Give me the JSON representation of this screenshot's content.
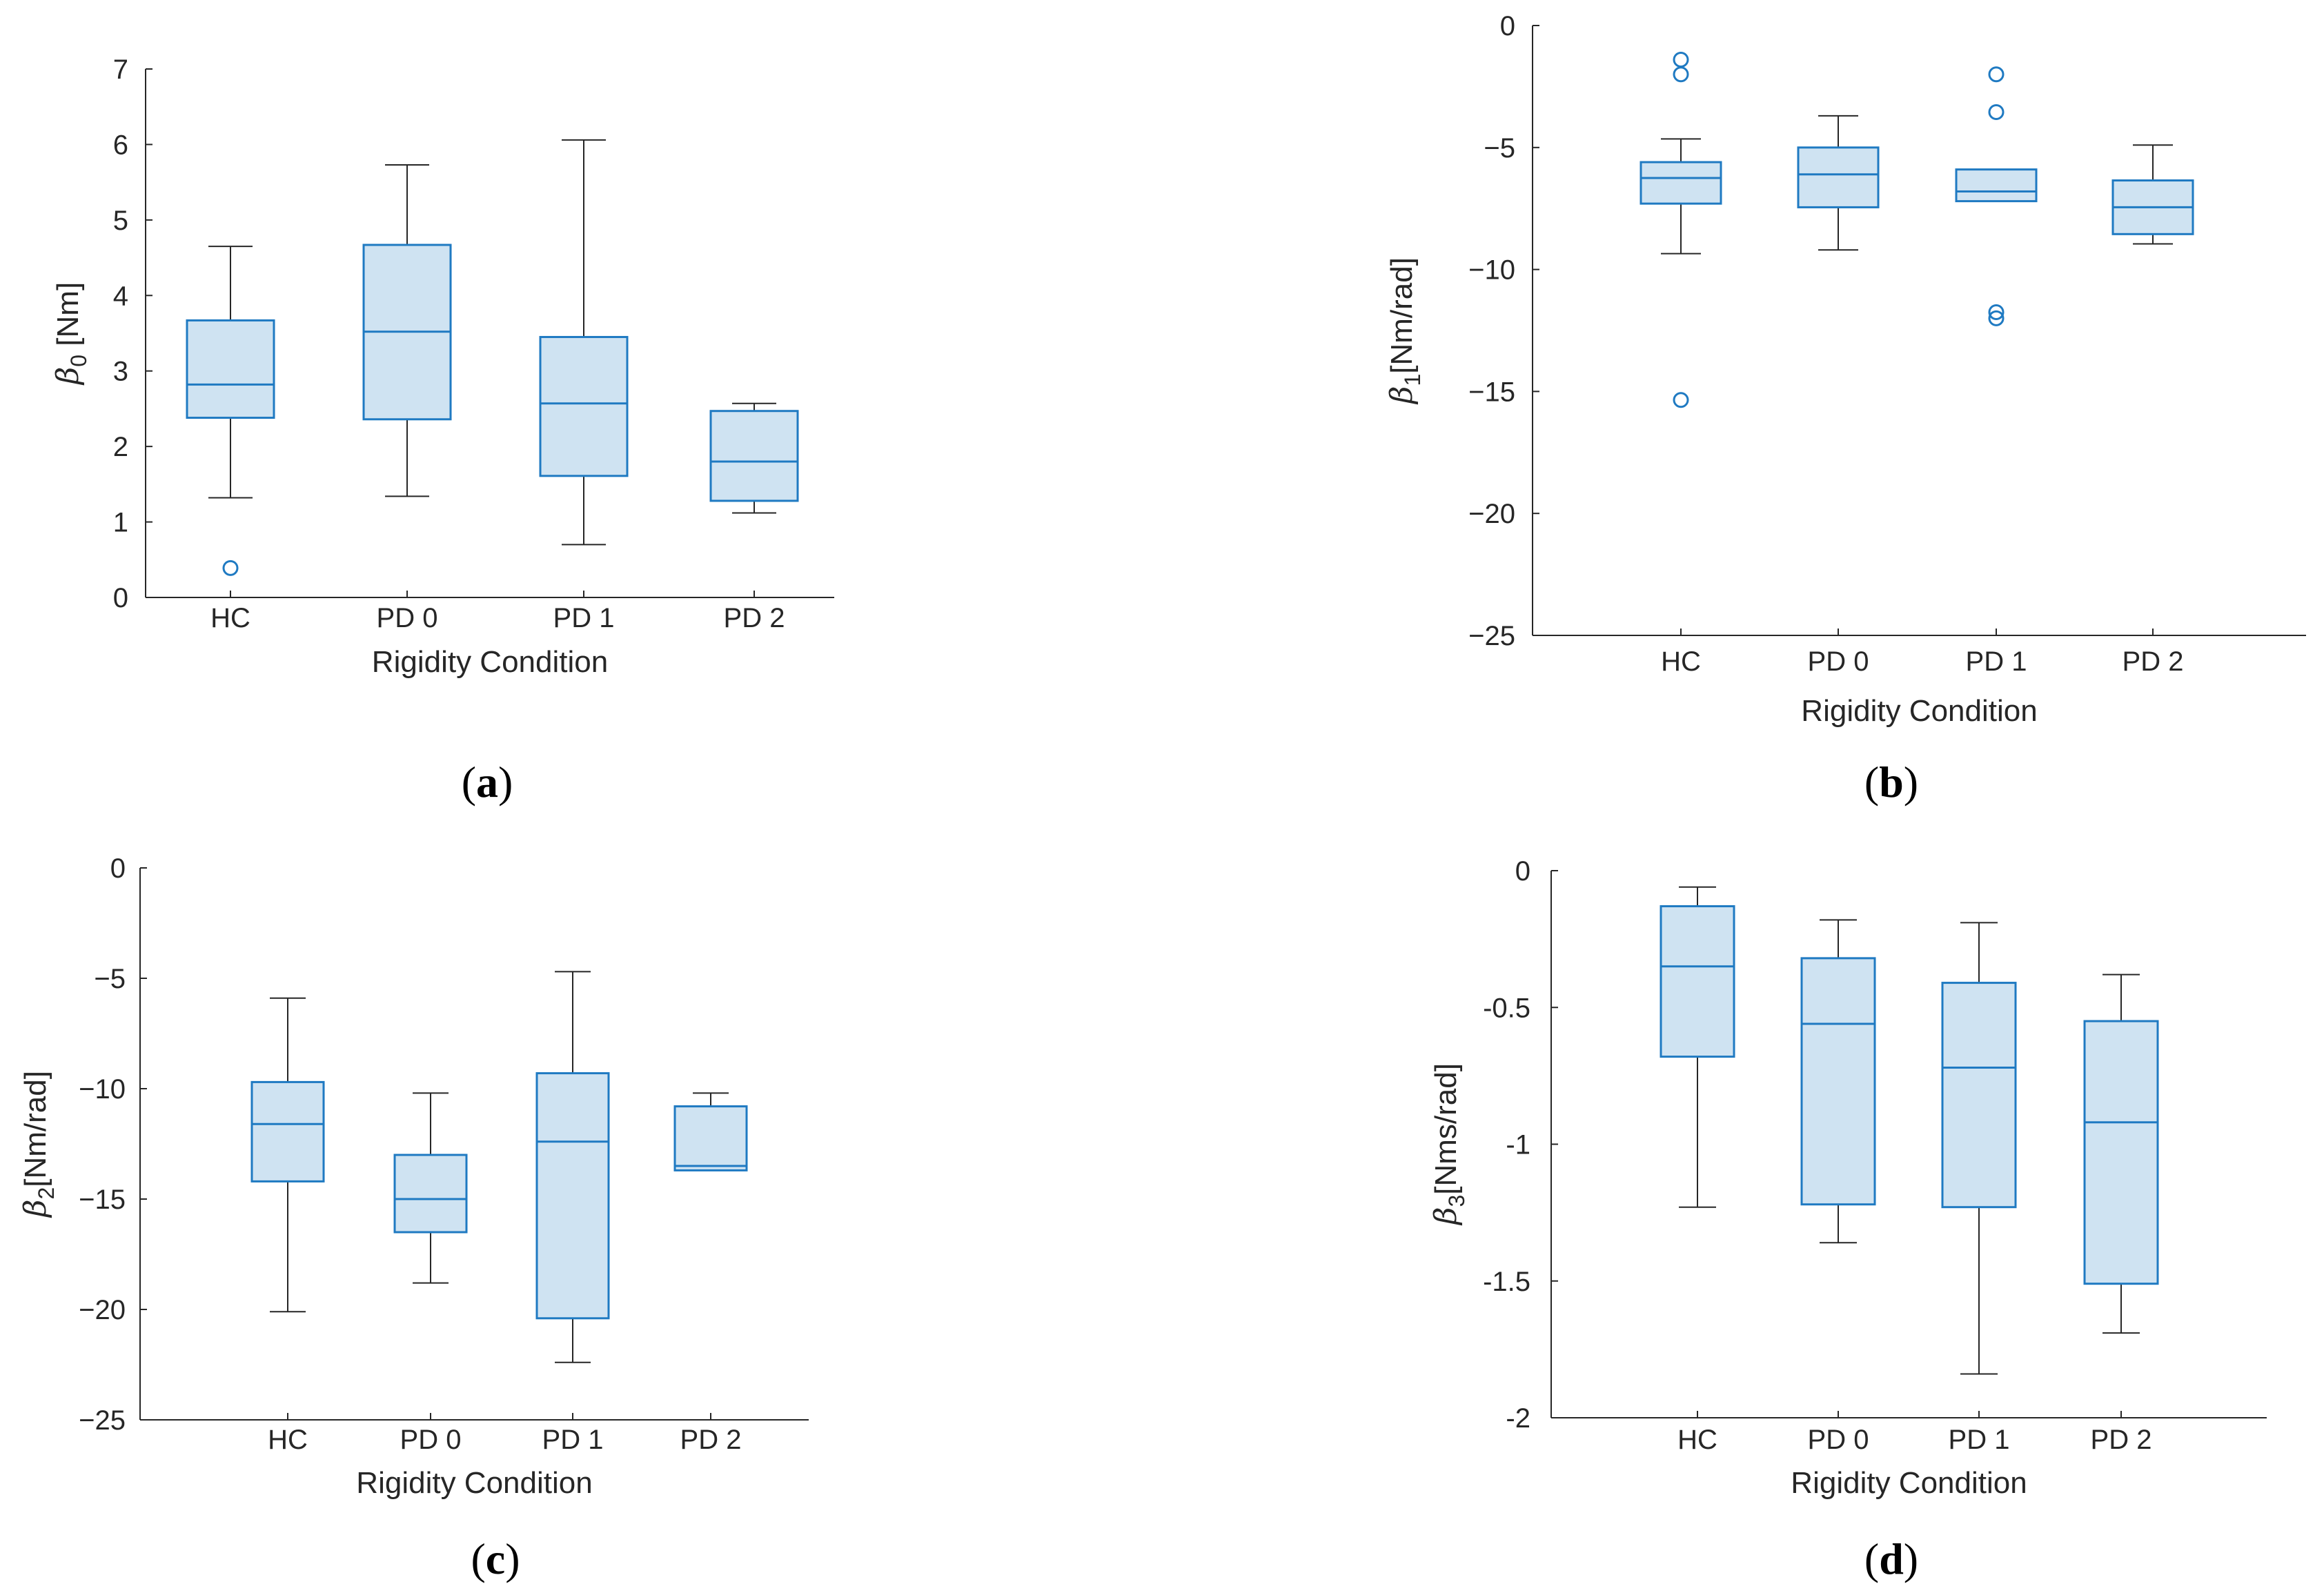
{
  "colors": {
    "box_edge": "#1f7ac2",
    "box_fill": "#cfe3f2",
    "whisker": "#262626",
    "axis": "#262626"
  },
  "chart_data": [
    {
      "type": "box",
      "panel": "a",
      "categories": [
        "HC",
        "PD 0",
        "PD 1",
        "PD 2"
      ],
      "xlabel": "Rigidity Condition",
      "ylabel_symbol": "β",
      "ylabel_subscript": "0",
      "ylabel_unit": " [Nm]",
      "ylim": [
        0,
        7
      ],
      "yticks": [
        0,
        1,
        2,
        3,
        4,
        5,
        6,
        7
      ],
      "ytick_labels": [
        "0",
        "1",
        "2",
        "3",
        "4",
        "5",
        "6",
        "7"
      ],
      "boxes": [
        {
          "name": "HC",
          "whisker_low": 1.32,
          "q1": 2.38,
          "median": 2.82,
          "q3": 3.67,
          "whisker_high": 4.65,
          "outliers": [
            0.39
          ]
        },
        {
          "name": "PD 0",
          "whisker_low": 1.34,
          "q1": 2.36,
          "median": 3.52,
          "q3": 4.67,
          "whisker_high": 5.73,
          "outliers": []
        },
        {
          "name": "PD 1",
          "whisker_low": 0.7,
          "q1": 1.61,
          "median": 2.57,
          "q3": 3.45,
          "whisker_high": 6.06,
          "outliers": []
        },
        {
          "name": "PD 2",
          "whisker_low": 1.12,
          "q1": 1.28,
          "median": 1.8,
          "q3": 2.47,
          "whisker_high": 2.57,
          "outliers": []
        }
      ]
    },
    {
      "type": "box",
      "panel": "b",
      "categories": [
        "HC",
        "PD 0",
        "PD 1",
        "PD 2"
      ],
      "xlabel": "Rigidity Condition",
      "ylabel_symbol": "β",
      "ylabel_subscript": "1",
      "ylabel_unit": "[Nm/rad]",
      "ylim": [
        -25,
        0
      ],
      "yticks": [
        -25,
        -20,
        -15,
        -10,
        -5,
        0
      ],
      "ytick_labels": [
        "−25",
        "−20",
        "−15",
        "−10",
        "−5",
        "0"
      ],
      "boxes": [
        {
          "name": "HC",
          "whisker_low": -9.35,
          "q1": -7.3,
          "median": -6.25,
          "q3": -5.6,
          "whisker_high": -4.65,
          "outliers": [
            -1.4,
            -2.0,
            -15.35
          ]
        },
        {
          "name": "PD 0",
          "whisker_low": -9.2,
          "q1": -7.45,
          "median": -6.1,
          "q3": -5.0,
          "whisker_high": -3.7,
          "outliers": []
        },
        {
          "name": "PD 1",
          "whisker_low": -7.2,
          "q1": -7.2,
          "median": -6.8,
          "q3": -5.9,
          "whisker_high": -5.9,
          "outliers": [
            -2.0,
            -3.55,
            -11.75,
            -12.0
          ]
        },
        {
          "name": "PD 2",
          "whisker_low": -8.95,
          "q1": -8.55,
          "median": -7.45,
          "q3": -6.35,
          "whisker_high": -4.9,
          "outliers": []
        }
      ]
    },
    {
      "type": "box",
      "panel": "c",
      "categories": [
        "HC",
        "PD 0",
        "PD 1",
        "PD 2"
      ],
      "xlabel": "Rigidity Condition",
      "ylabel_symbol": "β",
      "ylabel_subscript": "2",
      "ylabel_unit": "[Nm/rad]",
      "ylim": [
        -25,
        0
      ],
      "yticks": [
        -25,
        -20,
        -15,
        -10,
        -5,
        0
      ],
      "ytick_labels": [
        "−25",
        "−20",
        "−15",
        "−10",
        "−5",
        "0"
      ],
      "boxes": [
        {
          "name": "HC",
          "whisker_low": -20.1,
          "q1": -14.2,
          "median": -11.6,
          "q3": -9.7,
          "whisker_high": -5.9,
          "outliers": []
        },
        {
          "name": "PD 0",
          "whisker_low": -18.8,
          "q1": -16.5,
          "median": -15.0,
          "q3": -13.0,
          "whisker_high": -10.2,
          "outliers": []
        },
        {
          "name": "PD 1",
          "whisker_low": -22.4,
          "q1": -20.4,
          "median": -12.4,
          "q3": -9.3,
          "whisker_high": -4.7,
          "outliers": []
        },
        {
          "name": "PD 2",
          "whisker_low": -13.7,
          "q1": -13.7,
          "median": -13.5,
          "q3": -10.8,
          "whisker_high": -10.2,
          "outliers": []
        }
      ]
    },
    {
      "type": "box",
      "panel": "d",
      "categories": [
        "HC",
        "PD 0",
        "PD 1",
        "PD 2"
      ],
      "xlabel": "Rigidity Condition",
      "ylabel_symbol": "β",
      "ylabel_subscript": "3",
      "ylabel_unit": "[Nms/rad]",
      "ylim": [
        -2,
        0
      ],
      "yticks": [
        -2,
        -1.5,
        -1,
        -0.5,
        0
      ],
      "ytick_labels": [
        "-2",
        "-1.5",
        "-1",
        "-0.5",
        "0"
      ],
      "boxes": [
        {
          "name": "HC",
          "whisker_low": -1.23,
          "q1": -0.68,
          "median": -0.35,
          "q3": -0.13,
          "whisker_high": -0.06,
          "outliers": []
        },
        {
          "name": "PD 0",
          "whisker_low": -1.36,
          "q1": -1.22,
          "median": -0.56,
          "q3": -0.32,
          "whisker_high": -0.18,
          "outliers": []
        },
        {
          "name": "PD 1",
          "whisker_low": -1.84,
          "q1": -1.23,
          "median": -0.72,
          "q3": -0.41,
          "whisker_high": -0.19,
          "outliers": []
        },
        {
          "name": "PD 2",
          "whisker_low": -1.69,
          "q1": -1.51,
          "median": -0.92,
          "q3": -0.55,
          "whisker_high": -0.38,
          "outliers": []
        }
      ]
    }
  ],
  "panel_labels": [
    {
      "open": "(",
      "letter": "a",
      "close": ")"
    },
    {
      "open": "(",
      "letter": "b",
      "close": ")"
    },
    {
      "open": "(",
      "letter": "c",
      "close": ")"
    },
    {
      "open": "(",
      "letter": "d",
      "close": ")"
    }
  ]
}
